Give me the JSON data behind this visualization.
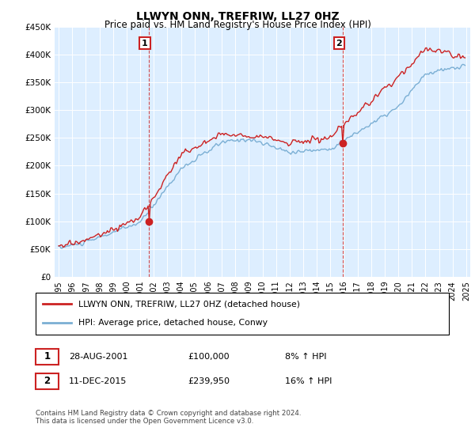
{
  "title": "LLWYN ONN, TREFRIW, LL27 0HZ",
  "subtitle": "Price paid vs. HM Land Registry's House Price Index (HPI)",
  "legend_line1": "LLWYN ONN, TREFRIW, LL27 0HZ (detached house)",
  "legend_line2": "HPI: Average price, detached house, Conwy",
  "footnote": "Contains HM Land Registry data © Crown copyright and database right 2024.\nThis data is licensed under the Open Government Licence v3.0.",
  "ann1_label": "1",
  "ann1_date": "28-AUG-2001",
  "ann1_price": "£100,000",
  "ann1_hpi": "8% ↑ HPI",
  "ann2_label": "2",
  "ann2_date": "11-DEC-2015",
  "ann2_price": "£239,950",
  "ann2_hpi": "16% ↑ HPI",
  "sale1_x": 2001.646,
  "sale1_y": 100000,
  "sale2_x": 2015.94,
  "sale2_y": 239950,
  "hpi_color": "#7bafd4",
  "price_color": "#cc2222",
  "vline_color": "#cc2222",
  "background_color": "#ddeeff",
  "plot_bg": "#ddeeff",
  "ylim": [
    0,
    450000
  ],
  "xlim": [
    1994.7,
    2025.3
  ],
  "ytick_vals": [
    0,
    50000,
    100000,
    150000,
    200000,
    250000,
    300000,
    350000,
    400000,
    450000
  ],
  "ytick_labels": [
    "£0",
    "£50K",
    "£100K",
    "£150K",
    "£200K",
    "£250K",
    "£300K",
    "£350K",
    "£400K",
    "£450K"
  ],
  "xticks": [
    1995,
    1996,
    1997,
    1998,
    1999,
    2000,
    2001,
    2002,
    2003,
    2004,
    2005,
    2006,
    2007,
    2008,
    2009,
    2010,
    2011,
    2012,
    2013,
    2014,
    2015,
    2016,
    2017,
    2018,
    2019,
    2020,
    2021,
    2022,
    2023,
    2024,
    2025
  ]
}
